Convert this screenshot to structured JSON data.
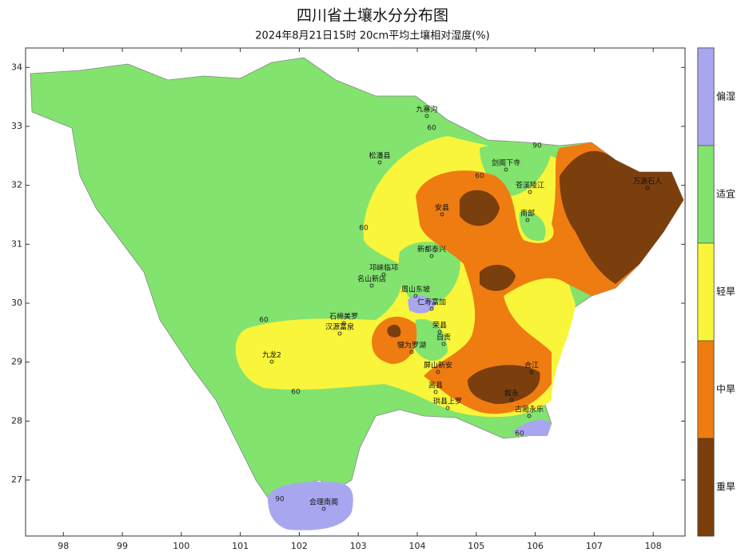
{
  "map": {
    "title": "四川省土壤水分分布图",
    "subtitle": "2024年8月21日15时 20cm平均土壤相对湿度(%)",
    "xlim": [
      97.36,
      108.54
    ],
    "ylim": [
      26.05,
      34.33
    ],
    "xticks": [
      98,
      99,
      100,
      101,
      102,
      103,
      104,
      105,
      106,
      107,
      108
    ],
    "yticks": [
      27,
      28,
      29,
      30,
      31,
      32,
      33,
      34
    ],
    "legend": [
      {
        "label": "偏湿",
        "color": "#a9a6f0"
      },
      {
        "label": "适宜",
        "color": "#82e36f"
      },
      {
        "label": "轻旱",
        "color": "#f8f53a"
      },
      {
        "label": "中旱",
        "color": "#ee7c11"
      },
      {
        "label": "重旱",
        "color": "#7b3e0d"
      }
    ],
    "stations": [
      "九寨沟",
      "松潘县",
      "剑阁下寺",
      "苍溪陵江",
      "万源石人",
      "安县",
      "南部",
      "邛崃临邛",
      "名山新店",
      "眉山东坡",
      "仁寿富加",
      "石棉美罗",
      "汉源富泉",
      "九龙2",
      "犍为罗湖",
      "屏山新安",
      "珙县上罗",
      "古蔺永乐",
      "会理南阁",
      "合江",
      "新都泰兴",
      "荣县",
      "自贡",
      "高县",
      "叙永"
    ],
    "contour_labels": [
      60,
      60,
      60,
      60,
      60,
      90,
      60,
      90
    ]
  }
}
